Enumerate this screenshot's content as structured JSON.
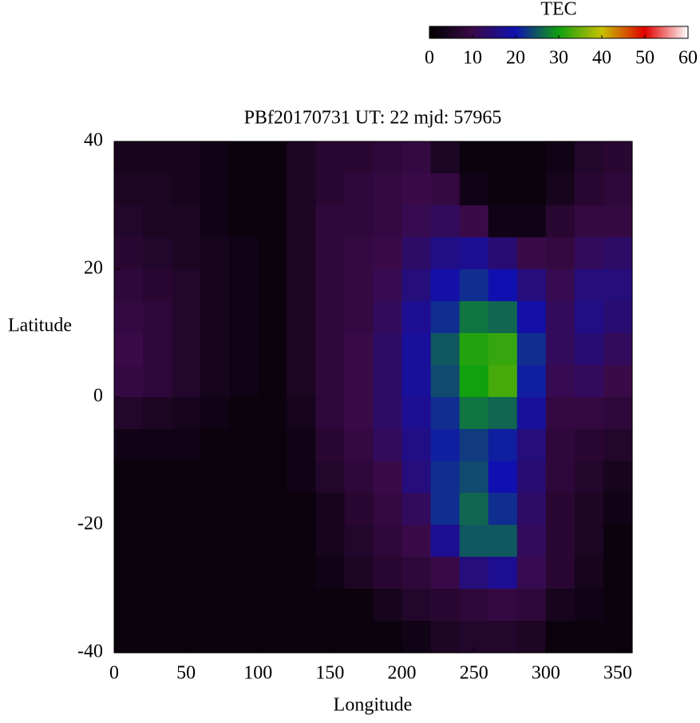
{
  "chart_data": {
    "type": "heatmap",
    "title": "PBf20170731  UT: 22  mjd: 57965",
    "x_label": "Longitude",
    "y_label": "Latitude",
    "colorbar_label": "TEC",
    "x": [
      10,
      30,
      50,
      70,
      90,
      110,
      130,
      150,
      170,
      190,
      210,
      230,
      250,
      270,
      290,
      310,
      330,
      350
    ],
    "y": [
      37.5,
      32.5,
      27.5,
      22.5,
      17.5,
      12.5,
      7.5,
      2.5,
      -2.5,
      -7.5,
      -12.5,
      -17.5,
      -22.5,
      -27.5,
      -32.5,
      -37.5
    ],
    "z": [
      [
        4,
        4,
        4,
        3,
        2,
        2,
        5,
        7,
        7,
        8,
        9,
        5,
        2,
        2,
        2,
        3,
        6,
        7
      ],
      [
        5,
        5,
        4,
        3,
        2,
        2,
        5,
        7,
        8,
        9,
        10,
        9,
        3,
        2,
        2,
        4,
        7,
        8
      ],
      [
        6,
        5,
        5,
        3,
        2,
        2,
        5,
        8,
        8,
        9,
        11,
        12,
        10,
        3,
        3,
        7,
        9,
        9
      ],
      [
        7,
        6,
        5,
        4,
        3,
        2,
        5,
        8,
        9,
        10,
        13,
        16,
        17,
        14,
        10,
        9,
        12,
        13
      ],
      [
        8,
        7,
        6,
        4,
        3,
        2,
        5,
        8,
        9,
        11,
        15,
        19,
        22,
        20,
        15,
        11,
        15,
        15
      ],
      [
        9,
        8,
        6,
        4,
        3,
        2,
        5,
        8,
        9,
        12,
        17,
        22,
        27,
        26,
        19,
        12,
        16,
        14
      ],
      [
        10,
        8,
        6,
        4,
        3,
        2,
        5,
        8,
        10,
        13,
        18,
        25,
        31,
        32,
        22,
        12,
        14,
        12
      ],
      [
        9,
        8,
        6,
        4,
        3,
        2,
        5,
        8,
        10,
        13,
        18,
        24,
        30,
        33,
        21,
        11,
        12,
        10
      ],
      [
        6,
        5,
        4,
        3,
        2,
        2,
        4,
        8,
        10,
        13,
        17,
        22,
        27,
        26,
        18,
        9,
        9,
        8
      ],
      [
        3,
        3,
        3,
        2,
        2,
        2,
        3,
        7,
        9,
        12,
        16,
        21,
        23,
        21,
        15,
        8,
        7,
        6
      ],
      [
        2,
        2,
        2,
        2,
        2,
        2,
        3,
        6,
        8,
        10,
        15,
        22,
        24,
        20,
        14,
        8,
        6,
        4
      ],
      [
        2,
        2,
        2,
        2,
        2,
        2,
        2,
        4,
        7,
        9,
        12,
        22,
        26,
        22,
        13,
        7,
        5,
        3
      ],
      [
        2,
        2,
        2,
        2,
        2,
        2,
        2,
        4,
        6,
        8,
        10,
        17,
        25,
        25,
        12,
        7,
        5,
        2
      ],
      [
        2,
        2,
        2,
        2,
        2,
        2,
        2,
        3,
        5,
        7,
        8,
        10,
        15,
        17,
        11,
        7,
        4,
        2
      ],
      [
        2,
        2,
        2,
        2,
        2,
        2,
        2,
        2,
        2,
        4,
        6,
        7,
        8,
        9,
        8,
        4,
        3,
        2
      ],
      [
        2,
        2,
        2,
        2,
        2,
        2,
        2,
        2,
        2,
        2,
        3,
        5,
        6,
        6,
        5,
        2,
        2,
        2
      ]
    ],
    "xlim": [
      0,
      360
    ],
    "xticks": [
      0,
      50,
      100,
      150,
      200,
      250,
      300,
      350
    ],
    "ylim": [
      -40,
      40
    ],
    "yticks": [
      -40,
      -20,
      0,
      20,
      40
    ],
    "zlim": [
      0,
      60
    ],
    "zticks": [
      0,
      10,
      20,
      30,
      40,
      50,
      60
    ],
    "colorscale": [
      "#000000",
      "#3a0a48",
      "#1010b0",
      "#10a010",
      "#c8c000",
      "#e00000",
      "#ffffff"
    ]
  }
}
